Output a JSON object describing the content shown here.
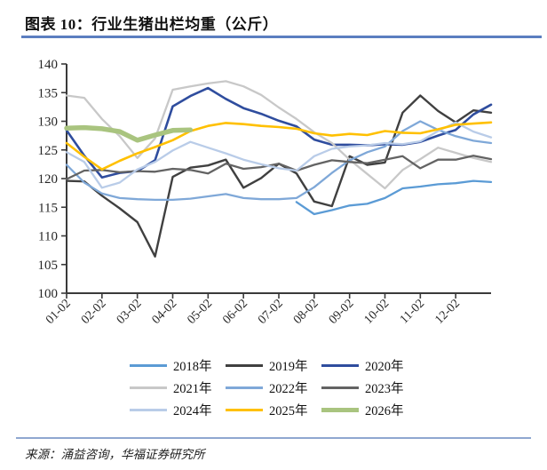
{
  "title": "图表 10：行业生猪出栏均重（公斤）",
  "source": "来源：涌益咨询，华福证券研究所",
  "accent_rule_color": "#5b7ec0",
  "footer_rule_color": "#8fa7d0",
  "chart_data": {
    "type": "line",
    "title": "行业生猪出栏均重（公斤）",
    "xlabel": "",
    "ylabel": "",
    "ylim": [
      100,
      140
    ],
    "ytick_step": 5,
    "grid": false,
    "legend_position": "bottom",
    "axis_color": "#3a3a3a",
    "tick_labels": [
      "01-02",
      "02-02",
      "03-02",
      "04-02",
      "05-02",
      "06-02",
      "07-02",
      "08-02",
      "09-02",
      "10-02",
      "11-02",
      "12-02"
    ],
    "x": [
      "01-02",
      "01-17",
      "02-02",
      "02-17",
      "03-02",
      "03-17",
      "04-02",
      "04-17",
      "05-02",
      "05-17",
      "06-02",
      "06-17",
      "07-02",
      "07-17",
      "08-02",
      "08-17",
      "09-02",
      "09-17",
      "10-02",
      "10-17",
      "11-02",
      "11-17",
      "12-02",
      "12-17",
      "12-30"
    ],
    "series": [
      {
        "name": "2018年",
        "color": "#5b9bd5",
        "width": 2.3,
        "values": [
          null,
          null,
          null,
          null,
          null,
          null,
          null,
          null,
          null,
          null,
          null,
          null,
          null,
          115.9,
          113.8,
          114.5,
          115.3,
          115.6,
          116.6,
          118.3,
          118.6,
          119.0,
          119.2,
          119.6,
          119.4
        ]
      },
      {
        "name": "2019年",
        "color": "#404040",
        "width": 2.4,
        "values": [
          119.6,
          119.5,
          117.0,
          114.8,
          112.4,
          106.4,
          120.3,
          121.9,
          122.3,
          123.3,
          118.4,
          120.1,
          122.6,
          120.9,
          116.0,
          115.2,
          123.9,
          122.4,
          122.8,
          131.5,
          134.5,
          131.8,
          129.8,
          131.9,
          131.5
        ]
      },
      {
        "name": "2020年",
        "color": "#2f4d9e",
        "width": 2.6,
        "values": [
          128.4,
          124.0,
          120.2,
          121.0,
          121.3,
          123.2,
          132.6,
          134.4,
          135.8,
          133.9,
          132.3,
          131.3,
          130.1,
          129.1,
          126.8,
          125.9,
          125.9,
          125.8,
          126.0,
          125.9,
          126.4,
          127.5,
          128.5,
          131.2,
          132.9
        ]
      },
      {
        "name": "2021年",
        "color": "#c8c8c8",
        "width": 2.3,
        "values": [
          134.5,
          134.1,
          130.4,
          127.4,
          123.6,
          127.0,
          135.5,
          136.1,
          136.6,
          137.0,
          136.1,
          134.6,
          132.4,
          130.4,
          128.1,
          126.2,
          123.3,
          120.8,
          118.3,
          121.5,
          123.4,
          125.4,
          124.5,
          123.6,
          122.9
        ]
      },
      {
        "name": "2022年",
        "color": "#7fa8d8",
        "width": 2.3,
        "values": [
          122.4,
          119.3,
          117.4,
          116.6,
          116.4,
          116.3,
          116.3,
          116.5,
          116.9,
          117.3,
          116.6,
          116.4,
          116.4,
          116.6,
          118.5,
          121.0,
          123.2,
          124.6,
          125.6,
          128.3,
          130.0,
          128.5,
          127.4,
          126.6,
          126.2
        ]
      },
      {
        "name": "2023年",
        "color": "#636363",
        "width": 2.3,
        "values": [
          119.9,
          121.4,
          121.5,
          121.1,
          121.3,
          121.2,
          121.7,
          121.5,
          120.9,
          122.6,
          121.7,
          122.0,
          122.6,
          121.4,
          122.4,
          123.2,
          122.9,
          122.7,
          123.3,
          123.9,
          121.8,
          123.3,
          123.3,
          124.0,
          123.4
        ]
      },
      {
        "name": "2024年",
        "color": "#b9cce8",
        "width": 2.3,
        "values": [
          124.6,
          122.9,
          118.4,
          119.3,
          121.6,
          122.9,
          124.9,
          126.4,
          125.4,
          124.4,
          123.3,
          122.5,
          121.8,
          121.4,
          123.9,
          125.2,
          125.6,
          125.8,
          126.2,
          126.0,
          126.5,
          128.3,
          129.8,
          128.2,
          127.2
        ]
      },
      {
        "name": "2025年",
        "color": "#ffc000",
        "width": 2.6,
        "values": [
          126.2,
          123.8,
          121.6,
          123.1,
          124.4,
          125.5,
          126.7,
          128.3,
          129.2,
          129.7,
          129.5,
          129.2,
          129.0,
          128.7,
          127.9,
          127.5,
          127.8,
          127.6,
          128.3,
          128.0,
          127.9,
          128.6,
          129.4,
          129.6,
          129.8
        ]
      },
      {
        "name": "2026年",
        "color": "#a9c47f",
        "width": 5.5,
        "values": [
          128.8,
          128.9,
          128.7,
          128.2,
          126.7,
          127.6,
          128.4,
          128.5,
          null,
          null,
          null,
          null,
          null,
          null,
          null,
          null,
          null,
          null,
          null,
          null,
          null,
          null,
          null,
          null,
          null
        ]
      }
    ]
  }
}
